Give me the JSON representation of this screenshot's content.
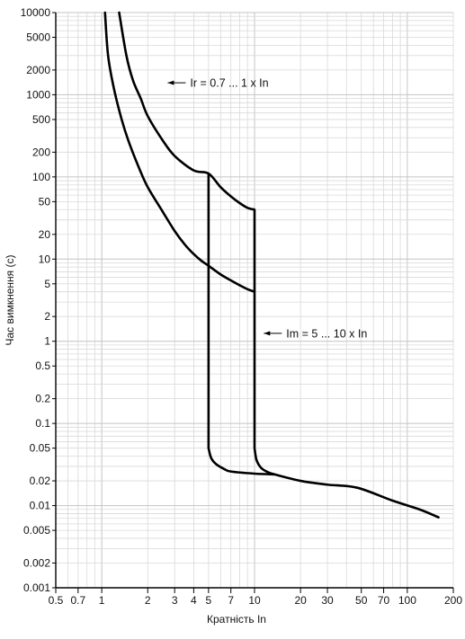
{
  "chart_data": {
    "type": "line",
    "title": "",
    "xlabel": "Кратність In",
    "ylabel": "Час вимкнення (с)",
    "x_scale": "log",
    "y_scale": "log",
    "xlim": [
      0.5,
      200
    ],
    "ylim": [
      0.001,
      10000
    ],
    "grid": true,
    "x_ticks": [
      0.5,
      0.7,
      1,
      2,
      3,
      4,
      5,
      7,
      10,
      20,
      30,
      50,
      70,
      100,
      200
    ],
    "x_tick_labels": [
      "0.5",
      "0.7",
      "1",
      "2",
      "3",
      "4",
      "5",
      "7",
      "10",
      "20",
      "30",
      "50",
      "70",
      "100",
      "200"
    ],
    "y_ticks": [
      0.001,
      0.002,
      0.005,
      0.01,
      0.02,
      0.05,
      0.1,
      0.2,
      0.5,
      1,
      2,
      5,
      10,
      20,
      50,
      100,
      200,
      500,
      1000,
      2000,
      5000,
      10000
    ],
    "y_tick_labels": [
      "0.001",
      "0.002",
      "0.005",
      "0.01",
      "0.02",
      "0.05",
      "0.1",
      "0.2",
      "0.5",
      "1",
      "2",
      "5",
      "10",
      "20",
      "50",
      "100",
      "200",
      "500",
      "1000",
      "2000",
      "5000",
      "10000"
    ],
    "series": [
      {
        "role": "lower-bound",
        "points": [
          [
            1.05,
            10000
          ],
          [
            1.1,
            3000
          ],
          [
            1.2,
            1200
          ],
          [
            1.35,
            500
          ],
          [
            1.5,
            270
          ],
          [
            1.75,
            130
          ],
          [
            2,
            75
          ],
          [
            2.5,
            38
          ],
          [
            3,
            22
          ],
          [
            3.5,
            15
          ],
          [
            4,
            11.5
          ],
          [
            4.5,
            9.5
          ],
          [
            5,
            8.3
          ],
          [
            6,
            6.5
          ],
          [
            7,
            5.5
          ],
          [
            8,
            4.8
          ],
          [
            9,
            4.3
          ],
          [
            10,
            4
          ],
          [
            10,
            0.05
          ],
          [
            10.3,
            0.036
          ],
          [
            11,
            0.029
          ],
          [
            12,
            0.026
          ],
          [
            13.5,
            0.024
          ],
          [
            20,
            0.02
          ],
          [
            30,
            0.018
          ],
          [
            47,
            0.0165
          ],
          [
            80,
            0.0115
          ],
          [
            120,
            0.009
          ],
          [
            160,
            0.0072
          ]
        ]
      },
      {
        "role": "upper-bound",
        "points": [
          [
            1.3,
            10000
          ],
          [
            1.45,
            3000
          ],
          [
            1.6,
            1500
          ],
          [
            1.8,
            900
          ],
          [
            2,
            550
          ],
          [
            2.5,
            280
          ],
          [
            3,
            180
          ],
          [
            4,
            120
          ],
          [
            5,
            110
          ],
          [
            6,
            75
          ],
          [
            7,
            58
          ],
          [
            8,
            48
          ],
          [
            9,
            42
          ],
          [
            10,
            40
          ],
          [
            10,
            4
          ]
        ]
      },
      {
        "role": "magnetic-5x",
        "points": [
          [
            5,
            110
          ],
          [
            5,
            8.3
          ],
          [
            5,
            0.05
          ],
          [
            5.2,
            0.038
          ],
          [
            5.6,
            0.032
          ],
          [
            6.3,
            0.028
          ],
          [
            7,
            0.026
          ],
          [
            10,
            0.0245
          ],
          [
            13.5,
            0.024
          ]
        ]
      }
    ],
    "annotations": [
      {
        "text": "Ir = 0.7 ... 1 x In",
        "arrow_to_x": 2.7,
        "y": 1400
      },
      {
        "text": "Im = 5 ... 10 x In",
        "arrow_to_x": 11.5,
        "y": 1.25
      }
    ]
  }
}
